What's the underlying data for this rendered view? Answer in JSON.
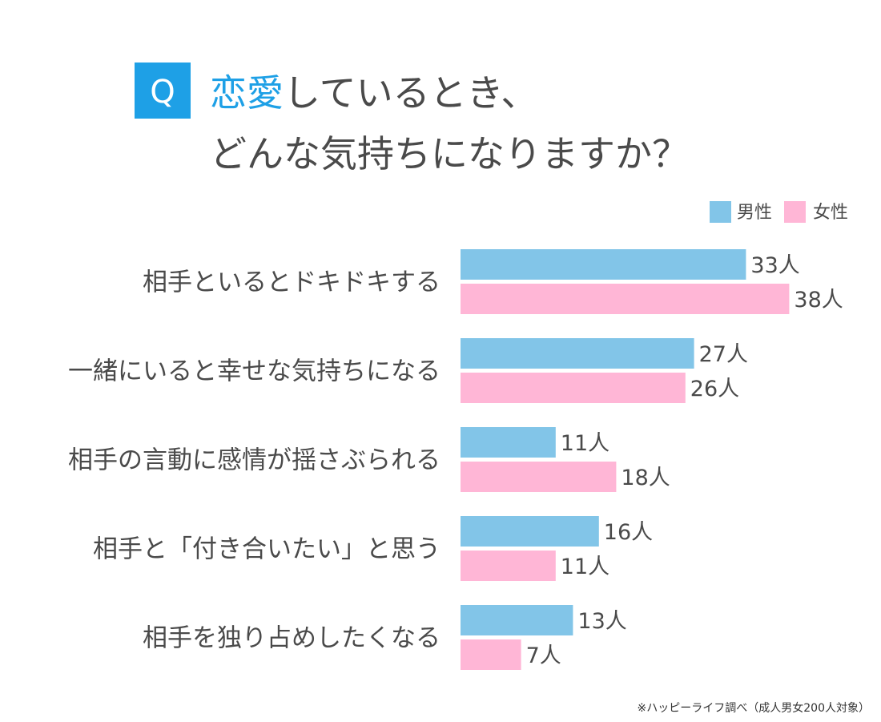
{
  "header": {
    "q_badge": "Q",
    "title_accent": "恋愛",
    "title_line1_rest": "しているとき、",
    "title_line2": "どんな気持ちになりますか？"
  },
  "chart_data": {
    "type": "bar",
    "orientation": "horizontal",
    "unit": "人",
    "categories": [
      "相手といるとドキドキする",
      "一緒にいると幸せな気持ちになる",
      "相手の言動に感情が揺さぶられる",
      "相手と「付き合いたい」と思う",
      "相手を独り占めしたくなる"
    ],
    "series": [
      {
        "name": "男性",
        "color": "#82c5e8",
        "values": [
          33,
          27,
          11,
          16,
          13
        ]
      },
      {
        "name": "女性",
        "color": "#ffb6d6",
        "values": [
          38,
          26,
          18,
          11,
          7
        ]
      }
    ],
    "legend_position": "top-right",
    "grid": false,
    "xlim": [
      0,
      38
    ]
  },
  "footnote": "※ハッピーライフ調べ（成人男女200人対象）"
}
